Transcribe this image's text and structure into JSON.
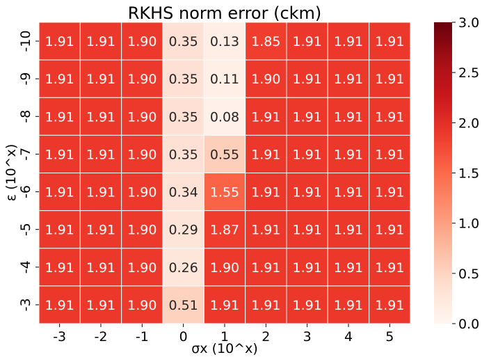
{
  "chart_data": {
    "type": "heatmap",
    "title": "RKHS norm error (ckm)",
    "xlabel": "σx (10^x)",
    "ylabel": "ε (10^x)",
    "x_categories": [
      "-3",
      "-2",
      "-1",
      "0",
      "1",
      "2",
      "3",
      "4",
      "5"
    ],
    "y_categories": [
      "-10",
      "-9",
      "-8",
      "-7",
      "-6",
      "-5",
      "-4",
      "-3"
    ],
    "values": [
      [
        1.91,
        1.91,
        1.9,
        0.35,
        0.13,
        1.85,
        1.91,
        1.91,
        1.91
      ],
      [
        1.91,
        1.91,
        1.9,
        0.35,
        0.11,
        1.9,
        1.91,
        1.91,
        1.91
      ],
      [
        1.91,
        1.91,
        1.9,
        0.35,
        0.08,
        1.91,
        1.91,
        1.91,
        1.91
      ],
      [
        1.91,
        1.91,
        1.9,
        0.35,
        0.55,
        1.91,
        1.91,
        1.91,
        1.91
      ],
      [
        1.91,
        1.91,
        1.9,
        0.34,
        1.55,
        1.91,
        1.91,
        1.91,
        1.91
      ],
      [
        1.91,
        1.91,
        1.9,
        0.29,
        1.87,
        1.91,
        1.91,
        1.91,
        1.91
      ],
      [
        1.91,
        1.91,
        1.9,
        0.26,
        1.9,
        1.91,
        1.91,
        1.91,
        1.91
      ],
      [
        1.91,
        1.91,
        1.9,
        0.51,
        1.91,
        1.91,
        1.91,
        1.91,
        1.91
      ]
    ],
    "colorbar": {
      "min": 0.0,
      "max": 3.0,
      "ticks": [
        "0.0",
        "0.5",
        "1.0",
        "1.5",
        "2.0",
        "2.5",
        "3.0"
      ],
      "colormap": "Reds"
    },
    "grid": false,
    "legend": "none"
  }
}
